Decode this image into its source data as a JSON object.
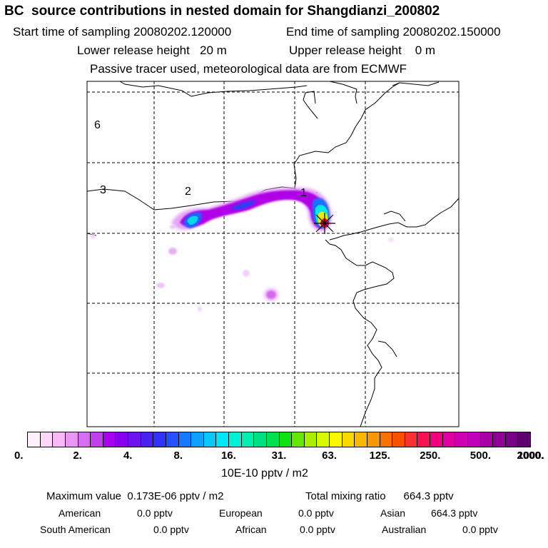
{
  "header": {
    "title": "BC  source contributions in nested domain for Shangdianzi_200802",
    "start_time": "Start time of sampling 20080202.120000",
    "end_time": "End time of sampling 20080202.150000",
    "lower_release": "Lower release height   20 m",
    "upper_release": "Upper release height    0 m",
    "tracer_note": "Passive tracer used, meteorological data are from ECMWF"
  },
  "map": {
    "labels": [
      "6",
      "3",
      "2",
      "1"
    ],
    "colors": {
      "border": "#000000",
      "grid": "#000000",
      "plume_purple": "#b000e8",
      "plume_blue": "#2060ff",
      "plume_cyan": "#00e8e8",
      "plume_yellow": "#e8e800",
      "receptor": "#e0003a"
    }
  },
  "colorbar": {
    "ticks": [
      "0.",
      "2.",
      "4.",
      "8.",
      "16.",
      "31.",
      "63.",
      "125.",
      "250.",
      "500.",
      "1000.",
      "2000."
    ],
    "colors": [
      "#ffeefc",
      "#ffd6fa",
      "#f6b8f6",
      "#ea95f2",
      "#d86cf0",
      "#c040f0",
      "#a800f0",
      "#8800f0",
      "#6c14f0",
      "#4a20f0",
      "#3030ff",
      "#2450ff",
      "#1878ff",
      "#10a0ff",
      "#08c8ff",
      "#00e8f8",
      "#00f0d8",
      "#00f0b0",
      "#00e080",
      "#00e050",
      "#10e010",
      "#60e800",
      "#a8f000",
      "#d8f800",
      "#f8f800",
      "#f8d800",
      "#f8b800",
      "#f89800",
      "#f87000",
      "#f85000",
      "#f83030",
      "#f81050",
      "#f00080",
      "#e000a0",
      "#d000b0",
      "#c000b8",
      "#a800a8",
      "#900098",
      "#780088",
      "#600070"
    ],
    "unit": "10E-10 pptv / m2"
  },
  "stats": {
    "max_value": "Maximum value  0.173E-06 pptv / m2",
    "total_mixing": "Total mixing ratio      664.3 pptv",
    "american_label": "American",
    "american_value": "0.0 pptv",
    "european_label": "European",
    "european_value": "0.0 pptv",
    "asian_label": "Asian",
    "asian_value": "664.3 pptv",
    "south_american_label": "South American",
    "south_american_value": "0.0 pptv",
    "african_label": "African",
    "african_value": "0.0 pptv",
    "australian_label": "Australian",
    "australian_value": "0.0 pptv"
  }
}
